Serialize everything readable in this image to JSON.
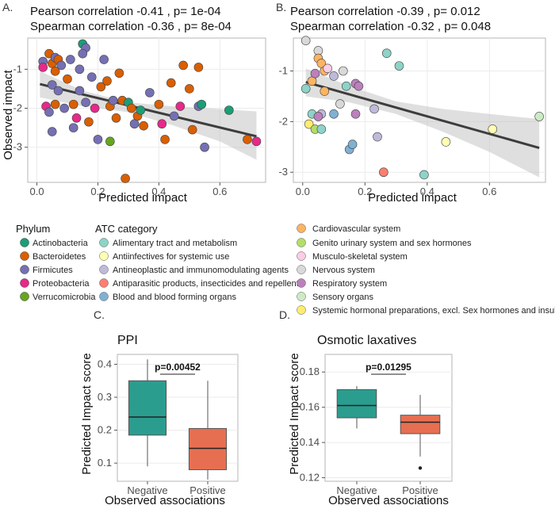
{
  "figure": {
    "panels": {
      "A": "A.",
      "B": "B.",
      "C": "C.",
      "D": "D."
    },
    "legend": {
      "phylum_title": "Phylum",
      "atc_title": "ATC category",
      "phylum": [
        {
          "label": "Actinobacteria",
          "color": "#1b9e77"
        },
        {
          "label": "Bacteroidetes",
          "color": "#d95f02"
        },
        {
          "label": "Firmicutes",
          "color": "#7570b3"
        },
        {
          "label": "Proteobacteria",
          "color": "#e7298a"
        },
        {
          "label": "Verrucomicrobia",
          "color": "#66a61e"
        }
      ],
      "atc": [
        {
          "label": "Alimentary tract and metabolism",
          "color": "#8dd3c7"
        },
        {
          "label": "Antiinfectives for systemic use",
          "color": "#ffffb3"
        },
        {
          "label": "Antineoplastic and immunomodulating agents",
          "color": "#bebada"
        },
        {
          "label": "Antiparasitic products, insecticides and repellents",
          "color": "#fb8072"
        },
        {
          "label": "Blood and blood forming organs",
          "color": "#80b1d3"
        },
        {
          "label": "Cardiovascular system",
          "color": "#fdb462"
        },
        {
          "label": "Genito urinary system and sex hormones",
          "color": "#b3de69"
        },
        {
          "label": "Musculo-skeletal system",
          "color": "#fccde5"
        },
        {
          "label": "Nervous system",
          "color": "#d9d9d9"
        },
        {
          "label": "Respiratory system",
          "color": "#bc80bd"
        },
        {
          "label": "Sensory organs",
          "color": "#ccebc5"
        },
        {
          "label": "Systemic hormonal preparations, excl. Sex hormones and insulins",
          "color": "#ffed6f"
        }
      ]
    }
  },
  "chart_data": [
    {
      "id": "A",
      "type": "scatter",
      "annotations": [
        "Pearson correlation -0.41 , p= 1e-04",
        "Spearman correlation -0.36 , p= 8e-04"
      ],
      "xlabel": "Predicted impact",
      "ylabel": "Observed impact",
      "xlim": [
        -0.03,
        0.75
      ],
      "ylim": [
        -3.9,
        -0.2
      ],
      "xticks": [
        0,
        0.2,
        0.4,
        0.6
      ],
      "xticklabels": [
        "0.0",
        "0.2",
        "0.4",
        "0.6"
      ],
      "yticks": [
        -1,
        -2,
        -3
      ],
      "yticklabels": [
        "-1",
        "-2",
        "-3"
      ],
      "regression": {
        "x": [
          0.01,
          0.72
        ],
        "y": [
          -1.38,
          -2.72
        ]
      },
      "band": {
        "x": [
          0.01,
          0.15,
          0.3,
          0.45,
          0.6,
          0.72
        ],
        "upper": [
          -1.05,
          -1.55,
          -1.85,
          -1.95,
          -2.02,
          -2.08
        ],
        "lower": [
          -1.72,
          -1.95,
          -2.1,
          -2.45,
          -2.85,
          -3.32
        ]
      },
      "points": [
        {
          "x": 0.02,
          "y": -0.8,
          "c": "#7570b3"
        },
        {
          "x": 0.02,
          "y": -0.95,
          "c": "#e7298a"
        },
        {
          "x": 0.03,
          "y": -1.95,
          "c": "#e7298a"
        },
        {
          "x": 0.04,
          "y": -0.6,
          "c": "#d95f02"
        },
        {
          "x": 0.05,
          "y": -0.85,
          "c": "#d95f02"
        },
        {
          "x": 0.06,
          "y": -0.7,
          "c": "#7570b3"
        },
        {
          "x": 0.06,
          "y": -1.05,
          "c": "#d95f02"
        },
        {
          "x": 0.07,
          "y": -0.75,
          "c": "#d95f02"
        },
        {
          "x": 0.05,
          "y": -1.4,
          "c": "#7570b3"
        },
        {
          "x": 0.04,
          "y": -2.1,
          "c": "#7570b3"
        },
        {
          "x": 0.05,
          "y": -2.6,
          "c": "#7570b3"
        },
        {
          "x": 0.06,
          "y": -1.9,
          "c": "#d95f02"
        },
        {
          "x": 0.07,
          "y": -1.55,
          "c": "#7570b3"
        },
        {
          "x": 0.08,
          "y": -0.9,
          "c": "#7570b3"
        },
        {
          "x": 0.09,
          "y": -2.0,
          "c": "#7570b3"
        },
        {
          "x": 0.1,
          "y": -1.25,
          "c": "#d95f02"
        },
        {
          "x": 0.11,
          "y": -0.75,
          "c": "#7570b3"
        },
        {
          "x": 0.12,
          "y": -1.9,
          "c": "#d95f02"
        },
        {
          "x": 0.12,
          "y": -2.5,
          "c": "#7570b3"
        },
        {
          "x": 0.13,
          "y": -2.25,
          "c": "#e7298a"
        },
        {
          "x": 0.14,
          "y": -1.55,
          "c": "#7570b3"
        },
        {
          "x": 0.14,
          "y": -1.0,
          "c": "#7570b3"
        },
        {
          "x": 0.15,
          "y": -0.35,
          "c": "#1b9e77"
        },
        {
          "x": 0.16,
          "y": -0.45,
          "c": "#7570b3"
        },
        {
          "x": 0.15,
          "y": -0.6,
          "c": "#7570b3"
        },
        {
          "x": 0.16,
          "y": -1.85,
          "c": "#7570b3"
        },
        {
          "x": 0.17,
          "y": -2.35,
          "c": "#d95f02"
        },
        {
          "x": 0.18,
          "y": -1.2,
          "c": "#7570b3"
        },
        {
          "x": 0.19,
          "y": -2.0,
          "c": "#e7298a"
        },
        {
          "x": 0.2,
          "y": -2.8,
          "c": "#7570b3"
        },
        {
          "x": 0.21,
          "y": -1.45,
          "c": "#d95f02"
        },
        {
          "x": 0.22,
          "y": -0.75,
          "c": "#7570b3"
        },
        {
          "x": 0.23,
          "y": -1.3,
          "c": "#d95f02"
        },
        {
          "x": 0.24,
          "y": -2.85,
          "c": "#66a61e"
        },
        {
          "x": 0.24,
          "y": -1.95,
          "c": "#d95f02"
        },
        {
          "x": 0.25,
          "y": -1.8,
          "c": "#7570b3"
        },
        {
          "x": 0.26,
          "y": -2.25,
          "c": "#d95f02"
        },
        {
          "x": 0.27,
          "y": -1.1,
          "c": "#d95f02"
        },
        {
          "x": 0.28,
          "y": -1.8,
          "c": "#d95f02"
        },
        {
          "x": 0.29,
          "y": -3.8,
          "c": "#d95f02"
        },
        {
          "x": 0.3,
          "y": -1.85,
          "c": "#1b9e77"
        },
        {
          "x": 0.31,
          "y": -2.0,
          "c": "#d95f02"
        },
        {
          "x": 0.32,
          "y": -2.4,
          "c": "#7570b3"
        },
        {
          "x": 0.33,
          "y": -2.2,
          "c": "#d95f02"
        },
        {
          "x": 0.34,
          "y": -2.05,
          "c": "#1b9e77"
        },
        {
          "x": 0.35,
          "y": -2.45,
          "c": "#d95f02"
        },
        {
          "x": 0.37,
          "y": -1.6,
          "c": "#7570b3"
        },
        {
          "x": 0.4,
          "y": -1.9,
          "c": "#d95f02"
        },
        {
          "x": 0.41,
          "y": -2.4,
          "c": "#e7298a"
        },
        {
          "x": 0.42,
          "y": -2.8,
          "c": "#d95f02"
        },
        {
          "x": 0.44,
          "y": -1.35,
          "c": "#d95f02"
        },
        {
          "x": 0.45,
          "y": -2.2,
          "c": "#7570b3"
        },
        {
          "x": 0.47,
          "y": -1.95,
          "c": "#e7298a"
        },
        {
          "x": 0.48,
          "y": -0.9,
          "c": "#d95f02"
        },
        {
          "x": 0.5,
          "y": -1.5,
          "c": "#d95f02"
        },
        {
          "x": 0.51,
          "y": -2.55,
          "c": "#d95f02"
        },
        {
          "x": 0.53,
          "y": -1.95,
          "c": "#7570b3"
        },
        {
          "x": 0.54,
          "y": -1.9,
          "c": "#1b9e77"
        },
        {
          "x": 0.55,
          "y": -3.0,
          "c": "#7570b3"
        },
        {
          "x": 0.53,
          "y": -0.95,
          "c": "#d95f02"
        },
        {
          "x": 0.63,
          "y": -2.05,
          "c": "#1b9e77"
        },
        {
          "x": 0.69,
          "y": -2.8,
          "c": "#d95f02"
        },
        {
          "x": 0.72,
          "y": -2.85,
          "c": "#e7298a"
        }
      ]
    },
    {
      "id": "B",
      "type": "scatter",
      "annotations": [
        "Pearson correlation -0.39 , p= 0.012",
        "Spearman correlation -0.32 , p= 0.048"
      ],
      "xlabel": "Predicted impact",
      "ylabel": "",
      "xlim": [
        -0.03,
        0.78
      ],
      "ylim": [
        -3.2,
        -0.35
      ],
      "xticks": [
        0,
        0.2,
        0.4,
        0.6
      ],
      "xticklabels": [
        "0.0",
        "0.2",
        "0.4",
        "0.6"
      ],
      "yticks": [
        -1,
        -2,
        -3
      ],
      "yticklabels": [
        "-1",
        "-2",
        "-3"
      ],
      "regression": {
        "x": [
          0.01,
          0.76
        ],
        "y": [
          -1.22,
          -2.52
        ]
      },
      "band": {
        "x": [
          0.01,
          0.15,
          0.3,
          0.45,
          0.6,
          0.76
        ],
        "upper": [
          -0.95,
          -1.3,
          -1.6,
          -1.75,
          -1.85,
          -1.95
        ],
        "lower": [
          -1.5,
          -1.62,
          -1.85,
          -2.2,
          -2.6,
          -3.1
        ]
      },
      "points": [
        {
          "x": 0.01,
          "y": -0.4,
          "c": "#d9d9d9"
        },
        {
          "x": 0.01,
          "y": -1.35,
          "c": "#8dd3c7"
        },
        {
          "x": 0.02,
          "y": -2.05,
          "c": "#ffed6f"
        },
        {
          "x": 0.03,
          "y": -1.85,
          "c": "#8dd3c7"
        },
        {
          "x": 0.03,
          "y": -1.2,
          "c": "#fdb462"
        },
        {
          "x": 0.04,
          "y": -1.05,
          "c": "#bc80bd"
        },
        {
          "x": 0.04,
          "y": -2.15,
          "c": "#b3de69"
        },
        {
          "x": 0.05,
          "y": -0.6,
          "c": "#d9d9d9"
        },
        {
          "x": 0.05,
          "y": -0.75,
          "c": "#fdb462"
        },
        {
          "x": 0.06,
          "y": -0.85,
          "c": "#fdb462"
        },
        {
          "x": 0.06,
          "y": -1.85,
          "c": "#bebada"
        },
        {
          "x": 0.05,
          "y": -1.9,
          "c": "#bc80bd"
        },
        {
          "x": 0.06,
          "y": -2.15,
          "c": "#8dd3c7"
        },
        {
          "x": 0.07,
          "y": -1.0,
          "c": "#fdb462"
        },
        {
          "x": 0.08,
          "y": -0.95,
          "c": "#fccde5"
        },
        {
          "x": 0.07,
          "y": -1.4,
          "c": "#fdb462"
        },
        {
          "x": 0.1,
          "y": -1.1,
          "c": "#bebada"
        },
        {
          "x": 0.1,
          "y": -1.85,
          "c": "#80b1d3"
        },
        {
          "x": 0.12,
          "y": -1.65,
          "c": "#d9d9d9"
        },
        {
          "x": 0.13,
          "y": -1.0,
          "c": "#d9d9d9"
        },
        {
          "x": 0.14,
          "y": -1.3,
          "c": "#8dd3c7"
        },
        {
          "x": 0.15,
          "y": -2.55,
          "c": "#80b1d3"
        },
        {
          "x": 0.16,
          "y": -2.45,
          "c": "#80b1d3"
        },
        {
          "x": 0.17,
          "y": -1.25,
          "c": "#bc80bd"
        },
        {
          "x": 0.17,
          "y": -1.85,
          "c": "#bc80bd"
        },
        {
          "x": 0.18,
          "y": -1.3,
          "c": "#bc80bd"
        },
        {
          "x": 0.23,
          "y": -1.75,
          "c": "#bebada"
        },
        {
          "x": 0.24,
          "y": -2.3,
          "c": "#bebada"
        },
        {
          "x": 0.26,
          "y": -3.0,
          "c": "#fb8072"
        },
        {
          "x": 0.27,
          "y": -0.65,
          "c": "#8dd3c7"
        },
        {
          "x": 0.31,
          "y": -0.9,
          "c": "#8dd3c7"
        },
        {
          "x": 0.39,
          "y": -3.05,
          "c": "#8dd3c7"
        },
        {
          "x": 0.46,
          "y": -2.4,
          "c": "#ffffb3"
        },
        {
          "x": 0.61,
          "y": -2.15,
          "c": "#ffffb3"
        },
        {
          "x": 0.76,
          "y": -1.9,
          "c": "#ccebc5"
        }
      ]
    },
    {
      "id": "C",
      "type": "boxplot",
      "title": "PPI",
      "xlabel": "Observed associations",
      "ylabel": "Predicted Impact score",
      "categories": [
        "Negative",
        "Positive"
      ],
      "ylim": [
        0.045,
        0.43
      ],
      "yticks": [
        0.1,
        0.2,
        0.3,
        0.4
      ],
      "yticklabels": [
        "0.1",
        "0.2",
        "0.3",
        "0.4"
      ],
      "boxes": [
        {
          "min": 0.09,
          "q1": 0.185,
          "median": 0.24,
          "q3": 0.35,
          "max": 0.415,
          "color": "#2a9d8f",
          "outliers": []
        },
        {
          "min": 0.05,
          "q1": 0.08,
          "median": 0.145,
          "q3": 0.205,
          "max": 0.35,
          "color": "#e76f51",
          "outliers": []
        }
      ],
      "pvalue": "p=0.00452"
    },
    {
      "id": "D",
      "type": "boxplot",
      "title": "Osmotic laxatives",
      "xlabel": "Observed associations",
      "ylabel": "Predicted Impact score",
      "categories": [
        "Negative",
        "Positive"
      ],
      "ylim": [
        0.118,
        0.19
      ],
      "yticks": [
        0.12,
        0.14,
        0.16,
        0.18
      ],
      "yticklabels": [
        "0.12",
        "0.14",
        "0.16",
        "0.18"
      ],
      "boxes": [
        {
          "min": 0.148,
          "q1": 0.154,
          "median": 0.161,
          "q3": 0.17,
          "max": 0.172,
          "color": "#2a9d8f",
          "outliers": []
        },
        {
          "min": 0.132,
          "q1": 0.145,
          "median": 0.1515,
          "q3": 0.1555,
          "max": 0.167,
          "color": "#e76f51",
          "outliers": [
            0.1255
          ]
        }
      ],
      "pvalue": "p=0.01295"
    }
  ]
}
